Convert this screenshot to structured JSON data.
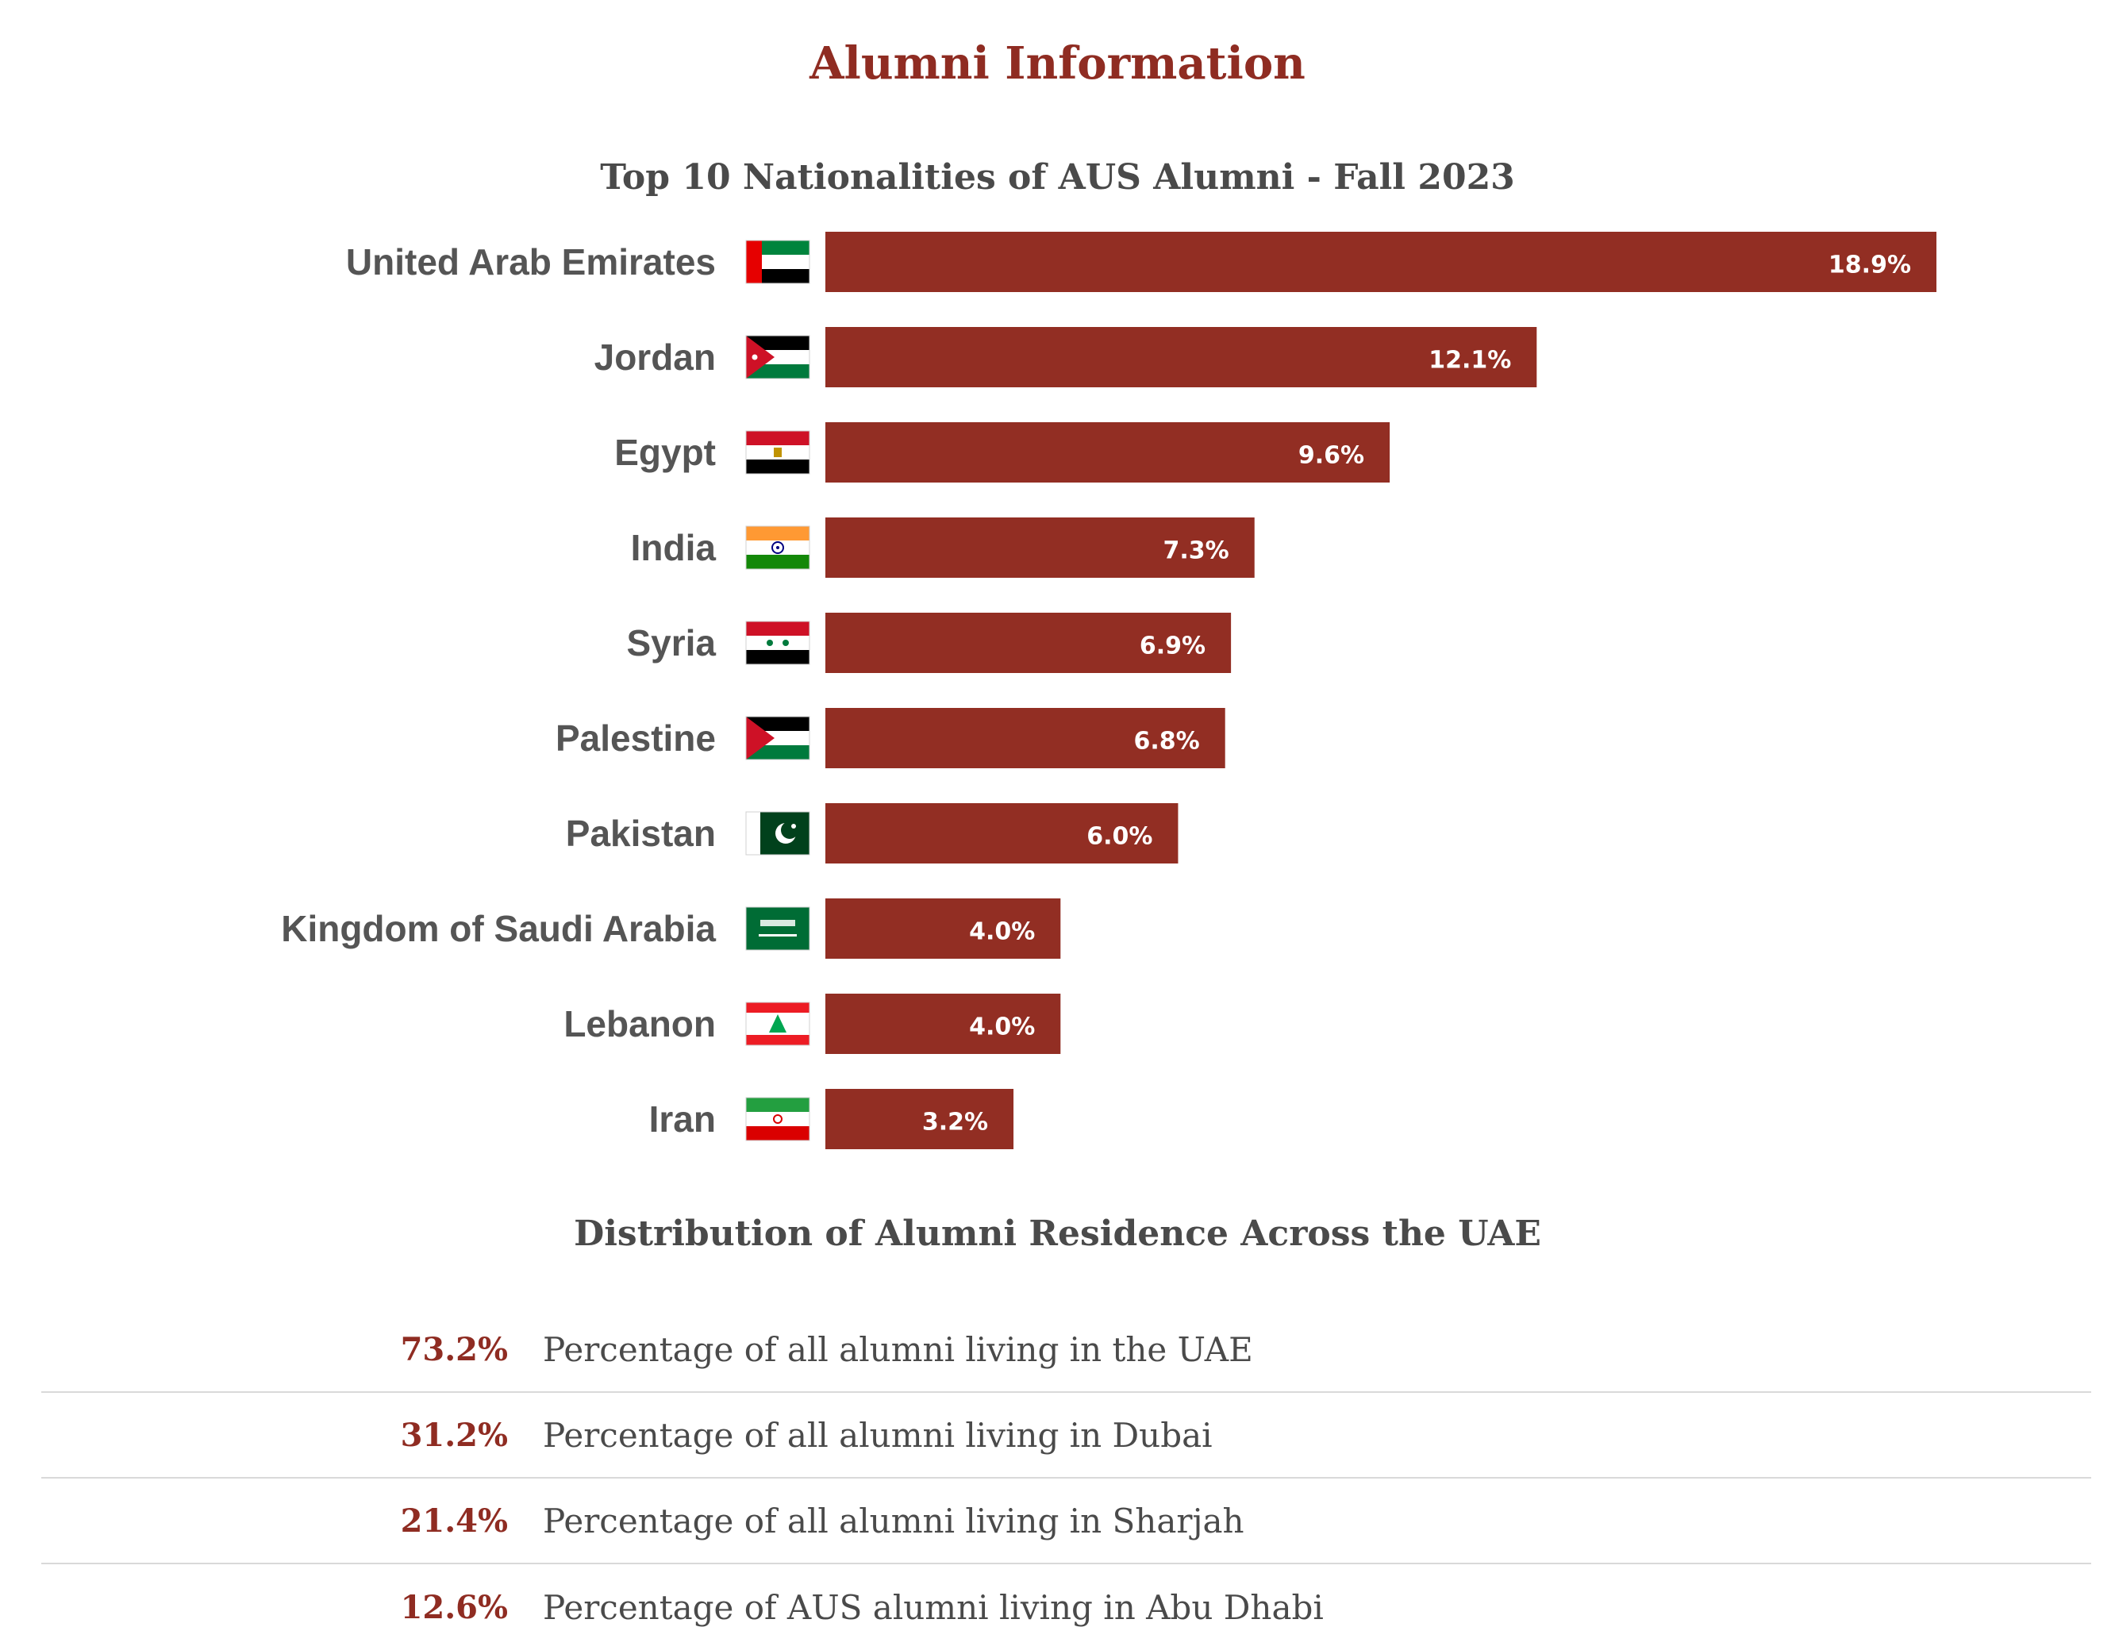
{
  "page": {
    "title": "Alumni Information"
  },
  "colors": {
    "accent": "#8f2c22",
    "bar": "#922e23",
    "text": "#555555"
  },
  "chart_data": {
    "type": "bar",
    "orientation": "horizontal",
    "title": "Top 10 Nationalities of AUS Alumni - Fall 2023",
    "xlabel": "",
    "ylabel": "",
    "xlim": [
      0,
      20
    ],
    "grid": false,
    "legend": "none",
    "categories": [
      "United Arab Emirates",
      "Jordan",
      "Egypt",
      "India",
      "Syria",
      "Palestine",
      "Pakistan",
      "Kingdom of Saudi Arabia",
      "Lebanon",
      "Iran"
    ],
    "values": [
      18.9,
      12.1,
      9.6,
      7.3,
      6.9,
      6.8,
      6.0,
      4.0,
      4.0,
      3.2
    ],
    "labels": [
      "18.9%",
      "12.1%",
      "9.6%",
      "7.3%",
      "6.9%",
      "6.8%",
      "6.0%",
      "4.0%",
      "4.0%",
      "3.2%"
    ],
    "flags": [
      "uae-flag-icon",
      "jordan-flag-icon",
      "egypt-flag-icon",
      "india-flag-icon",
      "syria-flag-icon",
      "palestine-flag-icon",
      "pakistan-flag-icon",
      "saudi-arabia-flag-icon",
      "lebanon-flag-icon",
      "iran-flag-icon"
    ]
  },
  "residence": {
    "title": "Distribution of Alumni Residence Across the UAE",
    "rows": [
      {
        "value": "73.2%",
        "text": "Percentage of all alumni living in the UAE"
      },
      {
        "value": "31.2%",
        "text": "Percentage of all alumni living in Dubai"
      },
      {
        "value": "21.4%",
        "text": "Percentage of all alumni living in Sharjah"
      },
      {
        "value": "12.6%",
        "text": "Percentage of AUS alumni living in Abu Dhabi"
      }
    ]
  }
}
